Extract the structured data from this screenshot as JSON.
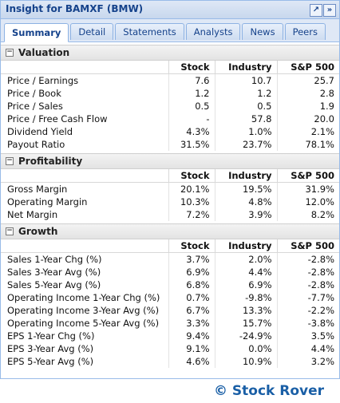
{
  "window": {
    "title": "Insight for BAMXF (BMW)",
    "tool_icons": [
      "expand-icon",
      "double-chevron-right-icon"
    ]
  },
  "tabs": [
    "Summary",
    "Detail",
    "Statements",
    "Analysts",
    "News",
    "Peers"
  ],
  "active_tab": "Summary",
  "columns": [
    "Stock",
    "Industry",
    "S&P 500"
  ],
  "sections": [
    {
      "title": "Valuation",
      "rows": [
        [
          "Price / Earnings",
          "7.6",
          "10.7",
          "25.7"
        ],
        [
          "Price / Book",
          "1.2",
          "1.2",
          "2.8"
        ],
        [
          "Price / Sales",
          "0.5",
          "0.5",
          "1.9"
        ],
        [
          "Price / Free Cash Flow",
          "-",
          "57.8",
          "20.0"
        ],
        [
          "Dividend Yield",
          "4.3%",
          "1.0%",
          "2.1%"
        ],
        [
          "Payout Ratio",
          "31.5%",
          "23.7%",
          "78.1%"
        ]
      ]
    },
    {
      "title": "Profitability",
      "rows": [
        [
          "Gross Margin",
          "20.1%",
          "19.5%",
          "31.9%"
        ],
        [
          "Operating Margin",
          "10.3%",
          "4.8%",
          "12.0%"
        ],
        [
          "Net Margin",
          "7.2%",
          "3.9%",
          "8.2%"
        ]
      ]
    },
    {
      "title": "Growth",
      "rows": [
        [
          "Sales 1-Year Chg (%)",
          "3.7%",
          "2.0%",
          "-2.8%"
        ],
        [
          "Sales 3-Year Avg (%)",
          "6.9%",
          "4.4%",
          "-2.8%"
        ],
        [
          "Sales 5-Year Avg (%)",
          "6.8%",
          "6.9%",
          "-2.8%"
        ],
        [
          "Operating Income 1-Year Chg (%)",
          "0.7%",
          "-9.8%",
          "-7.7%"
        ],
        [
          "Operating Income 3-Year Avg (%)",
          "6.7%",
          "13.3%",
          "-2.2%"
        ],
        [
          "Operating Income 5-Year Avg (%)",
          "3.3%",
          "15.7%",
          "-3.8%"
        ],
        [
          "EPS 1-Year Chg (%)",
          "9.4%",
          "-24.9%",
          "3.5%"
        ],
        [
          "EPS 3-Year Avg (%)",
          "9.1%",
          "0.0%",
          "4.4%"
        ],
        [
          "EPS 5-Year Avg (%)",
          "4.6%",
          "10.9%",
          "3.2%"
        ]
      ]
    }
  ],
  "brand": "© Stock Rover"
}
